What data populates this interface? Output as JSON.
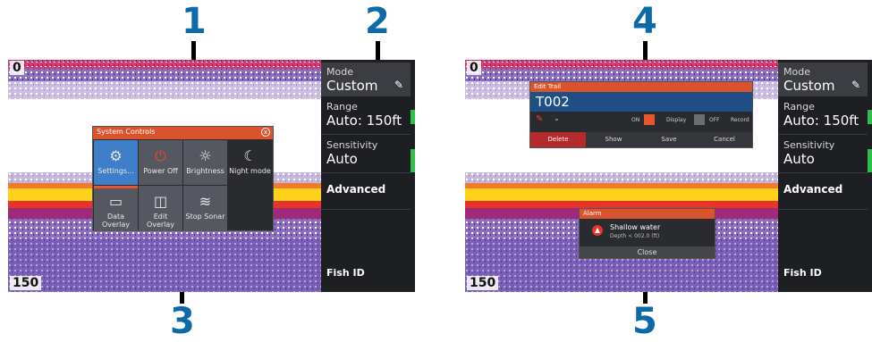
{
  "callouts": [
    "1",
    "2",
    "3",
    "4",
    "5"
  ],
  "left_screen": {
    "depth_top": "0",
    "depth_bottom": "150",
    "side_menu": {
      "mode_label": "Mode",
      "mode_value": "Custom",
      "range_label": "Range",
      "range_value": "Auto: 150ft",
      "sensitivity_label": "Sensitivity",
      "sensitivity_value": "Auto",
      "advanced": "Advanced",
      "fish_id": "Fish ID"
    },
    "system_controls": {
      "title": "System Controls",
      "close": "x",
      "tiles": [
        {
          "label": "Settings...",
          "icon": "gear-icon"
        },
        {
          "label": "Power Off",
          "icon": "power-icon"
        },
        {
          "label": "Brightness",
          "icon": "sun-icon"
        },
        {
          "label": "Night mode",
          "icon": "moon-icon"
        },
        {
          "label": "Data Overlay",
          "icon": "overlay-icon"
        },
        {
          "label": "Edit Overlay",
          "icon": "edit-overlay-icon"
        },
        {
          "label": "Stop Sonar",
          "icon": "sonar-icon"
        }
      ]
    }
  },
  "right_screen": {
    "depth_top": "0",
    "depth_bottom": "150",
    "side_menu": {
      "mode_label": "Mode",
      "mode_value": "Custom",
      "range_label": "Range",
      "range_value": "Auto: 150ft",
      "sensitivity_label": "Sensitivity",
      "sensitivity_value": "Auto",
      "advanced": "Advanced",
      "fish_id": "Fish ID"
    },
    "edit_trail": {
      "title": "Edit Trail",
      "name": "T002",
      "on": "ON",
      "display": "Display",
      "off": "OFF",
      "record": "Record",
      "buttons": [
        "Delete",
        "Show",
        "Save",
        "Cancel"
      ]
    },
    "alarm": {
      "title": "Alarm",
      "message": "Shallow water",
      "detail": "Depth < 002.0 (ft)",
      "close": "Close"
    }
  },
  "colors": {
    "accent": "#0c6aa6",
    "header": "#d9542c",
    "selected_tile": "#3f7ec8",
    "indicator": "#2fbf4a"
  }
}
